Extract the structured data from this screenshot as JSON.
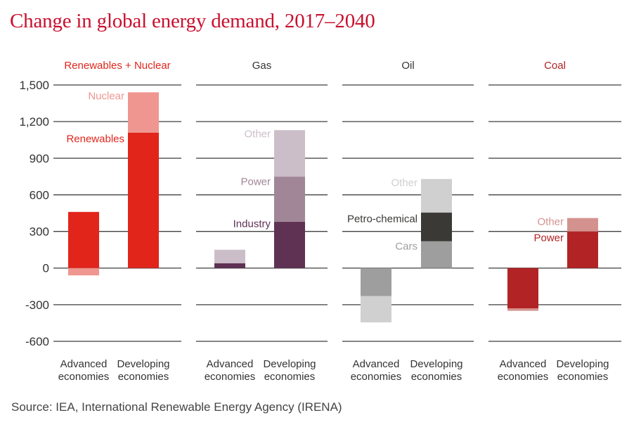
{
  "title": "Change in global energy demand, 2017–2040",
  "source": "Source: IEA, International Renewable Energy Agency (IRENA)",
  "colors": {
    "accent": "#c8102e",
    "renewables": "#e1251b",
    "nuclear": "#ef9690",
    "gas_industry": "#5f3254",
    "gas_power": "#a08696",
    "gas_other": "#ccbec8",
    "oil_cars": "#9e9e9e",
    "oil_petrochemical": "#3a3936",
    "oil_other": "#d0d0d0",
    "coal_power": "#b22325",
    "coal_other": "#d4928e",
    "gridline": "#3f3f3f",
    "text": "#333333"
  },
  "chart_data": {
    "type": "bar",
    "stacked": true,
    "title": "Change in global energy demand, 2017–2040",
    "ylim": [
      -600,
      1500
    ],
    "yticks": [
      "1,500",
      "1,200",
      "900",
      "600",
      "300",
      "0",
      "-300",
      "-600"
    ],
    "ytick_values": [
      1500,
      1200,
      900,
      600,
      300,
      0,
      -300,
      -600
    ],
    "grid": true,
    "categories": [
      {
        "line1": "Advanced",
        "line2": "economies"
      },
      {
        "line1": "Developing",
        "line2": "economies"
      }
    ],
    "panels": [
      {
        "name": "Renewables + Nuclear",
        "color": "#e1251b",
        "series": [
          {
            "name": "Renewables",
            "color": "#e1251b",
            "values": [
              460,
              1110
            ]
          },
          {
            "name": "Nuclear",
            "color": "#ef9690",
            "values": [
              -60,
              330
            ]
          }
        ],
        "labels": [
          {
            "text": "Nuclear",
            "color": "#ef9690",
            "y": 1410
          },
          {
            "text": "Renewables",
            "color": "#e1251b",
            "y": 1060
          }
        ]
      },
      {
        "name": "Gas",
        "color": "#333333",
        "series": [
          {
            "name": "Industry",
            "color": "#5f3254",
            "values": [
              40,
              380
            ]
          },
          {
            "name": "Power",
            "color": "#a08696",
            "values": [
              0,
              370
            ]
          },
          {
            "name": "Other",
            "color": "#ccbec8",
            "values": [
              110,
              380
            ]
          }
        ],
        "labels": [
          {
            "text": "Other",
            "color": "#ccbec8",
            "y": 1100
          },
          {
            "text": "Power",
            "color": "#a08696",
            "y": 710
          },
          {
            "text": "Industry",
            "color": "#5f3254",
            "y": 365
          }
        ]
      },
      {
        "name": "Oil",
        "color": "#333333",
        "series": [
          {
            "name": "Cars",
            "color": "#9e9e9e",
            "values": [
              -230,
              220
            ]
          },
          {
            "name": "Petro-chemical",
            "color": "#3a3936",
            "values": [
              0,
              235
            ]
          },
          {
            "name": "Other",
            "color": "#d0d0d0",
            "values": [
              -215,
              275
            ]
          }
        ],
        "labels": [
          {
            "text": "Other",
            "color": "#d0d0d0",
            "y": 700
          },
          {
            "text": "Petro-chemical",
            "color": "#3a3936",
            "y": 405
          },
          {
            "text": "Cars",
            "color": "#9e9e9e",
            "y": 180
          }
        ]
      },
      {
        "name": "Coal",
        "color": "#b22325",
        "series": [
          {
            "name": "Power",
            "color": "#b22325",
            "values": [
              -330,
              300
            ]
          },
          {
            "name": "Other",
            "color": "#d4928e",
            "values": [
              -20,
              110
            ]
          }
        ],
        "labels": [
          {
            "text": "Other",
            "color": "#d4928e",
            "y": 380
          },
          {
            "text": "Power",
            "color": "#b22325",
            "y": 250
          }
        ]
      }
    ]
  }
}
